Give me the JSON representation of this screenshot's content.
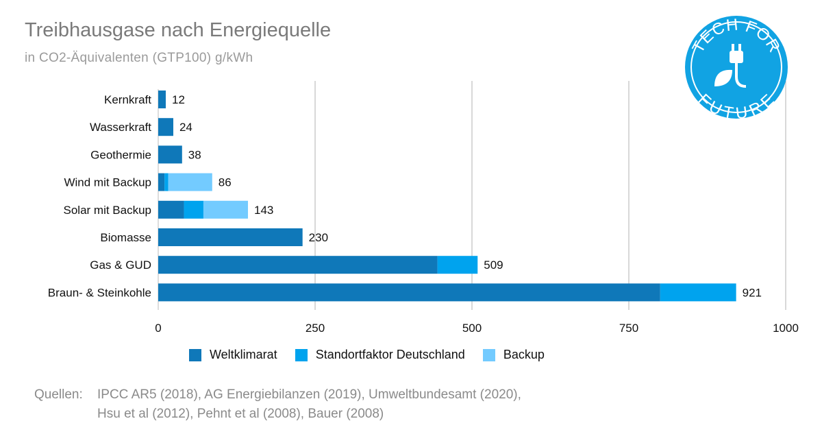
{
  "title": "Treibhausgase nach Energiequelle",
  "subtitle": "in CO2-Äquivalenten (GTP100) g/kWh",
  "logo": {
    "top": "TECH FOR",
    "bottom": "FUTURE"
  },
  "sources": {
    "label": "Quellen:",
    "line1": "IPCC AR5 (2018), AG Energiebilanzen (2019), Umweltbundesamt (2020),",
    "line2": "Hsu et al (2012), Pehnt et al (2008),  Bauer (2008)"
  },
  "chart_data": {
    "type": "bar",
    "orientation": "horizontal",
    "stacked": true,
    "categories": [
      "Kernkraft",
      "Wasserkraft",
      "Geothermie",
      "Wind mit Backup",
      "Solar mit Backup",
      "Biomasse",
      "Gas & GUD",
      "Braun- & Steinkohle"
    ],
    "series": [
      {
        "name": "Weltklimarat",
        "color": "#0f78b9",
        "values": [
          12,
          24,
          38,
          10,
          41,
          230,
          445,
          800
        ]
      },
      {
        "name": "Standortfaktor Deutschland",
        "color": "#00a3ee",
        "values": [
          0,
          0,
          0,
          6,
          31,
          0,
          64,
          121
        ]
      },
      {
        "name": "Backup",
        "color": "#73cbff",
        "values": [
          0,
          0,
          0,
          70,
          71,
          0,
          0,
          0
        ]
      }
    ],
    "totals": [
      12,
      24,
      38,
      86,
      143,
      230,
      509,
      921
    ],
    "xlim": [
      0,
      1000
    ],
    "xticks": [
      0,
      250,
      500,
      750,
      1000
    ],
    "grid": "vertical",
    "legend": "bottom"
  }
}
